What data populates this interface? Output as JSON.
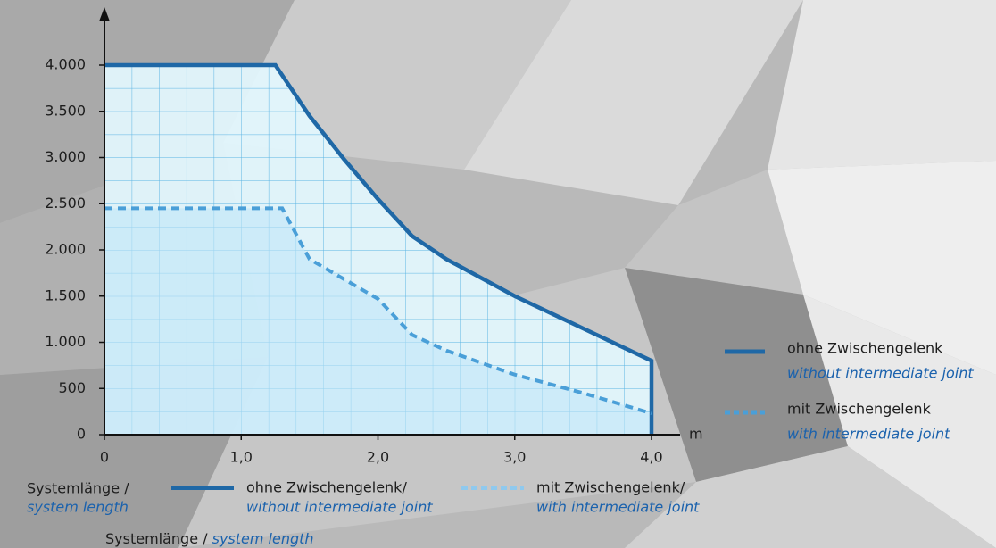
{
  "chart_data": {
    "type": "line",
    "x_unit": "m",
    "x_label": {
      "de": "Systemlänge /",
      "en": "system length"
    },
    "footer": {
      "de": "Systemlänge / ",
      "en": "system length"
    },
    "xlim": [
      0,
      4
    ],
    "xticks": [
      0,
      {
        "value": 1,
        "label": "1,0"
      },
      {
        "value": 2,
        "label": "2,0"
      },
      {
        "value": 3,
        "label": "3,0"
      },
      {
        "value": 4,
        "label": "4,0"
      }
    ],
    "ylim": [
      0,
      4000
    ],
    "yticks": [
      0,
      500,
      {
        "value": 1000,
        "label": "1.000"
      },
      {
        "value": 1500,
        "label": "1.500"
      },
      {
        "value": 2000,
        "label": "2.000"
      },
      {
        "value": 2500,
        "label": "2.500"
      },
      {
        "value": 3000,
        "label": "3.000"
      },
      {
        "value": 3500,
        "label": "3.500"
      },
      {
        "value": 4000,
        "label": "4.000"
      }
    ],
    "series": [
      {
        "name": "ohne Zwischengelenk",
        "name_en": "without intermediate joint",
        "legend_bottom": "ohne Zwischengelenk/",
        "dashed": false,
        "color": "#1f68a6",
        "x": [
          0,
          1.25,
          1.5,
          1.75,
          2.0,
          2.25,
          2.5,
          3.0,
          3.5,
          4.0,
          4.0
        ],
        "values": [
          4000,
          4000,
          3450,
          2985,
          2550,
          2150,
          1900,
          1500,
          1150,
          800,
          0
        ]
      },
      {
        "name": "mit Zwischengelenk",
        "name_en": "with intermediate joint",
        "legend_bottom": "mit Zwischengelenk/",
        "dashed": true,
        "color": "#4a9fd8",
        "x": [
          0,
          1.3,
          1.5,
          2.0,
          2.25,
          2.5,
          3.0,
          3.5,
          4.0
        ],
        "values": [
          2450,
          2450,
          1900,
          1470,
          1080,
          910,
          650,
          450,
          230
        ]
      }
    ]
  }
}
